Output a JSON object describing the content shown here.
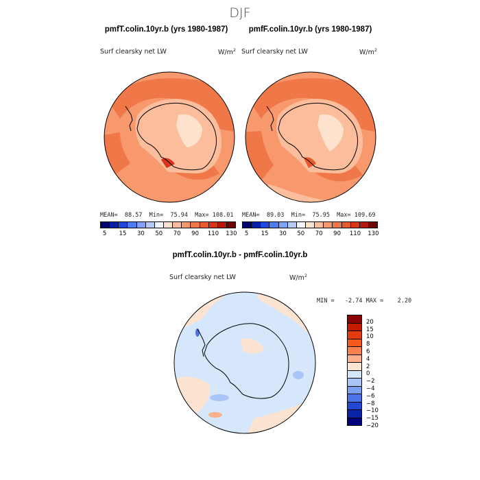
{
  "page": {
    "season_title": "DJF"
  },
  "panels": [
    {
      "id": "top-left",
      "title": "pmfT.colin.10yr.b (yrs 1980-1987)",
      "field": "Surf clearsky net LW",
      "units": "W/m",
      "units_sup": "2",
      "stats": "MEAN=  88.57  Min=  75.94  Max= 108.01"
    },
    {
      "id": "top-right",
      "title": "pmfF.colin.10yr.b (yrs 1980-1987)",
      "field": "Surf clearsky net LW",
      "units": "W/m",
      "units_sup": "2",
      "stats": "MEAN=  89.03  Min=  75.95  Max= 109.69"
    },
    {
      "id": "bottom",
      "title": "pmfT.colin.10yr.b - pmfF.colin.10yr.b",
      "field": "Surf clearsky net LW",
      "units": "W/m",
      "units_sup": "2",
      "stats": "MIN =   -2.74 MAX =    2.20"
    }
  ],
  "colorbars": {
    "absolute": {
      "colors": [
        "#00006e",
        "#0a1fa8",
        "#1f4ae0",
        "#4f7cf0",
        "#7fa4f7",
        "#b5cbfb",
        "#f5f6ff",
        "#fde2ce",
        "#fbbd9b",
        "#f7986d",
        "#f07848",
        "#ea5a2c",
        "#d8361a",
        "#b4180a",
        "#6e0000"
      ],
      "labels": [
        "5",
        "15",
        "30",
        "50",
        "70",
        "90",
        "110",
        "130"
      ]
    },
    "difference": {
      "colors": [
        "#8b0000",
        "#c41b00",
        "#e23b0c",
        "#f45a1e",
        "#f7814f",
        "#fab08a",
        "#fde4d2",
        "#d6e7fb",
        "#a9c5f7",
        "#7ba0f1",
        "#4b74e6",
        "#2148d0",
        "#0a24a6",
        "#00007a"
      ],
      "labels": [
        "20",
        "15",
        "10",
        "8",
        "6",
        "4",
        "2",
        "0",
        "−2",
        "−4",
        "−6",
        "−8",
        "−10",
        "−15",
        "−20"
      ]
    }
  },
  "chart_data": [
    {
      "type": "heatmap",
      "title": "pmfT.colin.10yr.b (yrs 1980-1987)",
      "variable": "Surf clearsky net LW",
      "units": "W/m2",
      "projection": "south polar stereographic",
      "stats": {
        "mean": 88.57,
        "min": 75.94,
        "max": 108.01
      },
      "contour_levels": [
        5,
        10,
        15,
        20,
        30,
        40,
        50,
        60,
        70,
        80,
        90,
        100,
        110,
        120,
        130
      ]
    },
    {
      "type": "heatmap",
      "title": "pmfF.colin.10yr.b (yrs 1980-1987)",
      "variable": "Surf clearsky net LW",
      "units": "W/m2",
      "projection": "south polar stereographic",
      "stats": {
        "mean": 89.03,
        "min": 75.95,
        "max": 109.69
      },
      "contour_levels": [
        5,
        10,
        15,
        20,
        30,
        40,
        50,
        60,
        70,
        80,
        90,
        100,
        110,
        120,
        130
      ]
    },
    {
      "type": "heatmap",
      "title": "pmfT.colin.10yr.b - pmfF.colin.10yr.b",
      "variable": "Surf clearsky net LW",
      "units": "W/m2",
      "projection": "south polar stereographic",
      "stats": {
        "min": -2.74,
        "max": 2.2
      },
      "contour_levels": [
        -20,
        -15,
        -10,
        -8,
        -6,
        -4,
        -2,
        0,
        2,
        4,
        6,
        8,
        10,
        15,
        20
      ]
    }
  ]
}
